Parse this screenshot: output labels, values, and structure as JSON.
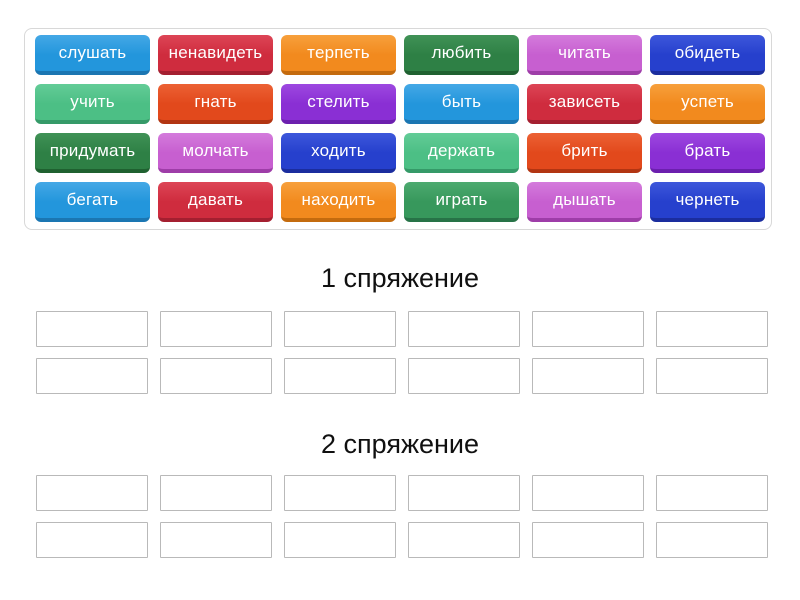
{
  "palette": {
    "blue": {
      "base": "#2396dc",
      "light": "#44a8e6",
      "dark": "#1b76b2"
    },
    "crimson": {
      "base": "#cf2c3e",
      "light": "#dd4556",
      "dark": "#a41f30"
    },
    "orange": {
      "base": "#f28a1e",
      "light": "#f7a03c",
      "dark": "#c46b0e"
    },
    "forest": {
      "base": "#2e8045",
      "light": "#409256",
      "dark": "#1f6130"
    },
    "orchid": {
      "base": "#c75fd0",
      "light": "#d47bdc",
      "dark": "#9e3da8"
    },
    "navy": {
      "base": "#2640cd",
      "light": "#3d57db",
      "dark": "#1b2d9e"
    },
    "emerald": {
      "base": "#4cbf85",
      "light": "#63cc97",
      "dark": "#359a68"
    },
    "vermilion": {
      "base": "#e2491c",
      "light": "#ec6134",
      "dark": "#b23512"
    },
    "violet": {
      "base": "#8a2fd4",
      "light": "#9d48e0",
      "dark": "#6c1fae"
    },
    "seagreen": {
      "base": "#37985c",
      "light": "#4daa70",
      "dark": "#277347"
    }
  },
  "word_bank": {
    "tiles": [
      {
        "label": "слушать",
        "color": "blue"
      },
      {
        "label": "ненавидеть",
        "color": "crimson"
      },
      {
        "label": "терпеть",
        "color": "orange"
      },
      {
        "label": "любить",
        "color": "forest"
      },
      {
        "label": "читать",
        "color": "orchid"
      },
      {
        "label": "обидеть",
        "color": "navy"
      },
      {
        "label": "учить",
        "color": "emerald"
      },
      {
        "label": "гнать",
        "color": "vermilion"
      },
      {
        "label": "стелить",
        "color": "violet"
      },
      {
        "label": "быть",
        "color": "blue"
      },
      {
        "label": "зависеть",
        "color": "crimson"
      },
      {
        "label": "успеть",
        "color": "orange"
      },
      {
        "label": "придумать",
        "color": "forest"
      },
      {
        "label": "молчать",
        "color": "orchid"
      },
      {
        "label": "ходить",
        "color": "navy"
      },
      {
        "label": "держать",
        "color": "emerald"
      },
      {
        "label": "брить",
        "color": "vermilion"
      },
      {
        "label": "брать",
        "color": "violet"
      },
      {
        "label": "бегать",
        "color": "blue"
      },
      {
        "label": "давать",
        "color": "crimson"
      },
      {
        "label": "находить",
        "color": "orange"
      },
      {
        "label": "играть",
        "color": "seagreen"
      },
      {
        "label": "дышать",
        "color": "orchid"
      },
      {
        "label": "чернеть",
        "color": "navy"
      }
    ]
  },
  "groups": [
    {
      "title": "1 спряжение",
      "slots": 12
    },
    {
      "title": "2 спряжение",
      "slots": 12
    }
  ]
}
